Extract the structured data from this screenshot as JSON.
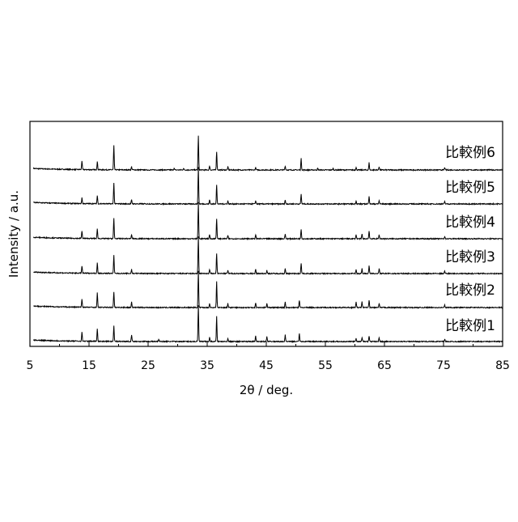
{
  "chart_data": {
    "type": "line",
    "xlabel": "2θ / deg.",
    "ylabel": "Intensity / a.u.",
    "xlim": [
      5,
      85
    ],
    "xticks": [
      5,
      15,
      25,
      35,
      45,
      55,
      65,
      75,
      85
    ],
    "xtick_labels": [
      "5",
      "15",
      "25",
      "35",
      "45",
      "55",
      "65",
      "75",
      "85"
    ],
    "grid": false,
    "legend": "labels placed at right beside each trace",
    "color": "#000000",
    "series": [
      {
        "name": "比較例6",
        "baseline": 0.02,
        "peaks": [
          [
            13.8,
            0.11
          ],
          [
            16.4,
            0.1
          ],
          [
            19.2,
            0.3
          ],
          [
            22.2,
            0.04
          ],
          [
            29.4,
            0.02
          ],
          [
            31.0,
            0.02
          ],
          [
            33.5,
            0.42
          ],
          [
            35.4,
            0.05
          ],
          [
            36.6,
            0.23
          ],
          [
            38.5,
            0.04
          ],
          [
            43.2,
            0.03
          ],
          [
            48.2,
            0.05
          ],
          [
            50.9,
            0.14
          ],
          [
            53.7,
            0.02
          ],
          [
            56.3,
            0.02
          ],
          [
            60.2,
            0.03
          ],
          [
            62.4,
            0.09
          ],
          [
            64.1,
            0.04
          ],
          [
            75.2,
            0.03
          ]
        ]
      },
      {
        "name": "比較例5",
        "baseline": 0.02,
        "peaks": [
          [
            13.8,
            0.07
          ],
          [
            16.4,
            0.1
          ],
          [
            19.2,
            0.26
          ],
          [
            22.2,
            0.05
          ],
          [
            33.5,
            0.45
          ],
          [
            35.4,
            0.05
          ],
          [
            36.6,
            0.24
          ],
          [
            38.5,
            0.04
          ],
          [
            43.2,
            0.04
          ],
          [
            48.2,
            0.05
          ],
          [
            50.9,
            0.12
          ],
          [
            60.2,
            0.04
          ],
          [
            62.4,
            0.1
          ],
          [
            64.1,
            0.04
          ],
          [
            75.2,
            0.03
          ]
        ]
      },
      {
        "name": "比較例4",
        "baseline": 0.02,
        "peaks": [
          [
            13.8,
            0.09
          ],
          [
            16.4,
            0.12
          ],
          [
            19.2,
            0.25
          ],
          [
            22.2,
            0.05
          ],
          [
            33.5,
            0.45
          ],
          [
            35.4,
            0.05
          ],
          [
            36.6,
            0.25
          ],
          [
            38.5,
            0.04
          ],
          [
            43.2,
            0.05
          ],
          [
            48.2,
            0.06
          ],
          [
            50.9,
            0.12
          ],
          [
            60.2,
            0.05
          ],
          [
            61.2,
            0.06
          ],
          [
            62.4,
            0.1
          ],
          [
            64.1,
            0.05
          ],
          [
            75.2,
            0.03
          ]
        ]
      },
      {
        "name": "比較例3",
        "baseline": 0.02,
        "peaks": [
          [
            13.8,
            0.09
          ],
          [
            16.4,
            0.13
          ],
          [
            19.2,
            0.22
          ],
          [
            22.2,
            0.05
          ],
          [
            33.5,
            0.46
          ],
          [
            35.4,
            0.05
          ],
          [
            36.6,
            0.25
          ],
          [
            38.5,
            0.04
          ],
          [
            43.2,
            0.05
          ],
          [
            45.1,
            0.04
          ],
          [
            48.2,
            0.06
          ],
          [
            50.9,
            0.13
          ],
          [
            60.2,
            0.05
          ],
          [
            61.2,
            0.06
          ],
          [
            62.4,
            0.1
          ],
          [
            64.1,
            0.06
          ],
          [
            75.2,
            0.03
          ]
        ]
      },
      {
        "name": "比較例2",
        "baseline": 0.02,
        "peaks": [
          [
            13.8,
            0.1
          ],
          [
            16.4,
            0.18
          ],
          [
            19.2,
            0.19
          ],
          [
            22.2,
            0.07
          ],
          [
            33.5,
            0.45
          ],
          [
            35.4,
            0.05
          ],
          [
            36.6,
            0.32
          ],
          [
            38.5,
            0.05
          ],
          [
            43.2,
            0.06
          ],
          [
            45.1,
            0.05
          ],
          [
            48.2,
            0.07
          ],
          [
            50.6,
            0.09
          ],
          [
            60.2,
            0.07
          ],
          [
            61.2,
            0.07
          ],
          [
            62.4,
            0.09
          ],
          [
            64.1,
            0.05
          ],
          [
            75.2,
            0.03
          ]
        ]
      },
      {
        "name": "比較例1",
        "baseline": 0.02,
        "peaks": [
          [
            13.8,
            0.11
          ],
          [
            16.4,
            0.16
          ],
          [
            19.2,
            0.19
          ],
          [
            22.2,
            0.08
          ],
          [
            26.8,
            0.03
          ],
          [
            33.5,
            0.45
          ],
          [
            35.4,
            0.05
          ],
          [
            36.6,
            0.31
          ],
          [
            38.5,
            0.04
          ],
          [
            43.2,
            0.07
          ],
          [
            45.1,
            0.06
          ],
          [
            48.2,
            0.08
          ],
          [
            50.6,
            0.1
          ],
          [
            60.2,
            0.04
          ],
          [
            61.2,
            0.05
          ],
          [
            62.4,
            0.07
          ],
          [
            64.1,
            0.05
          ],
          [
            75.2,
            0.03
          ]
        ]
      }
    ]
  }
}
